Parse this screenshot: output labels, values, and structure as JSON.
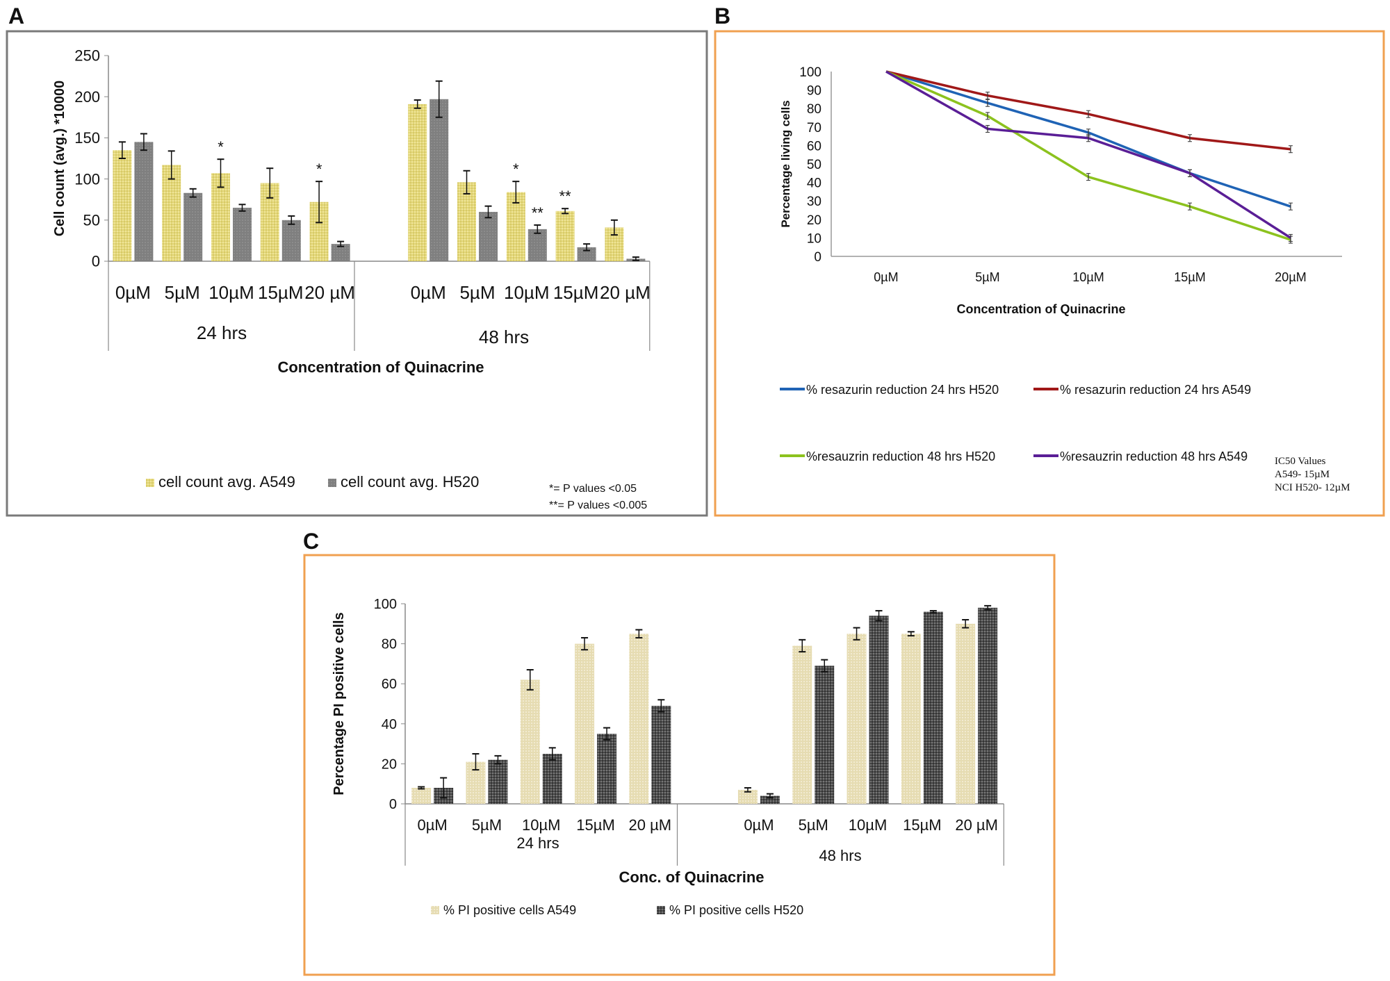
{
  "panel_letters": [
    "A",
    "B",
    "C"
  ],
  "colors": {
    "panel_a_border": "#7a7a7a",
    "panel_b_border": "#f0a050",
    "panel_c_border": "#f0a050",
    "a549_bar_a": "#e3d77a",
    "h520_bar_a": "#7f7f7f",
    "a549_bar_c": "#e6dcb2",
    "h520_bar_c": "#4d4d4d"
  },
  "chart_data": [
    {
      "type": "bar",
      "panel": "A",
      "ylabel": "Cell count (avg.) *10000",
      "xlabel": "Concentration of Quinacrine",
      "ylim": [
        0,
        250
      ],
      "yticks": [
        "0",
        "50",
        "100",
        "150",
        "200",
        "250"
      ],
      "groups": [
        {
          "label": "24 hrs",
          "categories": [
            "0µM",
            "5µM",
            "10µM",
            "15µM",
            "20 µM"
          ]
        },
        {
          "label": "48 hrs",
          "categories": [
            "0µM",
            "5µM",
            "10µM",
            "15µM",
            "20 µM"
          ]
        }
      ],
      "series": [
        {
          "name": "cell count avg. A549",
          "values": [
            [
              135,
              117,
              107,
              95,
              72
            ],
            [
              191,
              96,
              84,
              61,
              41
            ]
          ],
          "errors": [
            [
              10,
              17,
              17,
              18,
              25
            ],
            [
              5,
              14,
              13,
              3,
              9
            ]
          ],
          "marks": [
            [
              "",
              "",
              "*",
              "",
              "*"
            ],
            [
              "",
              "",
              "*",
              "**",
              ""
            ]
          ]
        },
        {
          "name": "cell count avg. H520",
          "values": [
            [
              145,
              83,
              65,
              50,
              21
            ],
            [
              197,
              60,
              39,
              17,
              3
            ]
          ],
          "errors": [
            [
              10,
              5,
              4,
              5,
              3
            ],
            [
              22,
              7,
              5,
              4,
              2
            ]
          ],
          "marks": [
            [
              "",
              "",
              "",
              "",
              ""
            ],
            [
              "",
              "",
              "**",
              "",
              ""
            ]
          ]
        }
      ],
      "notes": [
        "*= P values <0.05",
        "**= P values <0.005"
      ],
      "legend": "bottom"
    },
    {
      "type": "line",
      "panel": "B",
      "ylabel": "Percentage  living cells",
      "xlabel": "Concentration of Quinacrine",
      "ylim": [
        0,
        100
      ],
      "yticks": [
        "0",
        "10",
        "20",
        "30",
        "40",
        "50",
        "60",
        "70",
        "80",
        "90",
        "100"
      ],
      "categories": [
        "0µM",
        "5µM",
        "10µM",
        "15µM",
        "20µM"
      ],
      "series": [
        {
          "name": "% resazurin reduction 24 hrs H520",
          "color": "#1f63b5",
          "values": [
            100,
            83,
            67,
            45,
            27
          ]
        },
        {
          "name": "% resazurin reduction 24 hrs A549",
          "color": "#a01818",
          "values": [
            100,
            87,
            77,
            64,
            58
          ]
        },
        {
          "name": "%resauzrin reduction 48 hrs H520",
          "color": "#8cc21e",
          "values": [
            100,
            76,
            43,
            27,
            9
          ]
        },
        {
          "name": "%resauzrin reduction 48 hrs A549",
          "color": "#5a1e96",
          "values": [
            100,
            69,
            64,
            45,
            10
          ]
        }
      ],
      "annotation": [
        "IC50  Values",
        "A549- 15µM",
        "NCI H520- 12µM"
      ],
      "legend": "bottom"
    },
    {
      "type": "bar",
      "panel": "C",
      "ylabel": "Percentage PI positive cells",
      "xlabel": "Conc. of Quinacrine",
      "ylim": [
        0,
        100
      ],
      "yticks": [
        "0",
        "20",
        "40",
        "60",
        "80",
        "100"
      ],
      "groups": [
        {
          "label": "24 hrs",
          "categories": [
            "0µM",
            "5µM",
            "10µM",
            "15µM",
            "20 µM"
          ]
        },
        {
          "label": "48 hrs",
          "categories": [
            "0µM",
            "5µM",
            "10µM",
            "15µM",
            "20 µM"
          ]
        }
      ],
      "series": [
        {
          "name": "% PI positive cells A549",
          "values": [
            [
              8,
              21,
              62,
              80,
              85
            ],
            [
              7,
              79,
              85,
              85,
              90
            ]
          ],
          "errors": [
            [
              0.5,
              4,
              5,
              3,
              2
            ],
            [
              1,
              3,
              3,
              1,
              2
            ]
          ]
        },
        {
          "name": "% PI positive cells H520",
          "values": [
            [
              8,
              22,
              25,
              35,
              49
            ],
            [
              4,
              69,
              94,
              96,
              98
            ]
          ],
          "errors": [
            [
              5,
              2,
              3,
              3,
              3
            ],
            [
              1,
              3,
              2.5,
              0.5,
              1
            ]
          ]
        }
      ],
      "legend": "bottom"
    }
  ]
}
